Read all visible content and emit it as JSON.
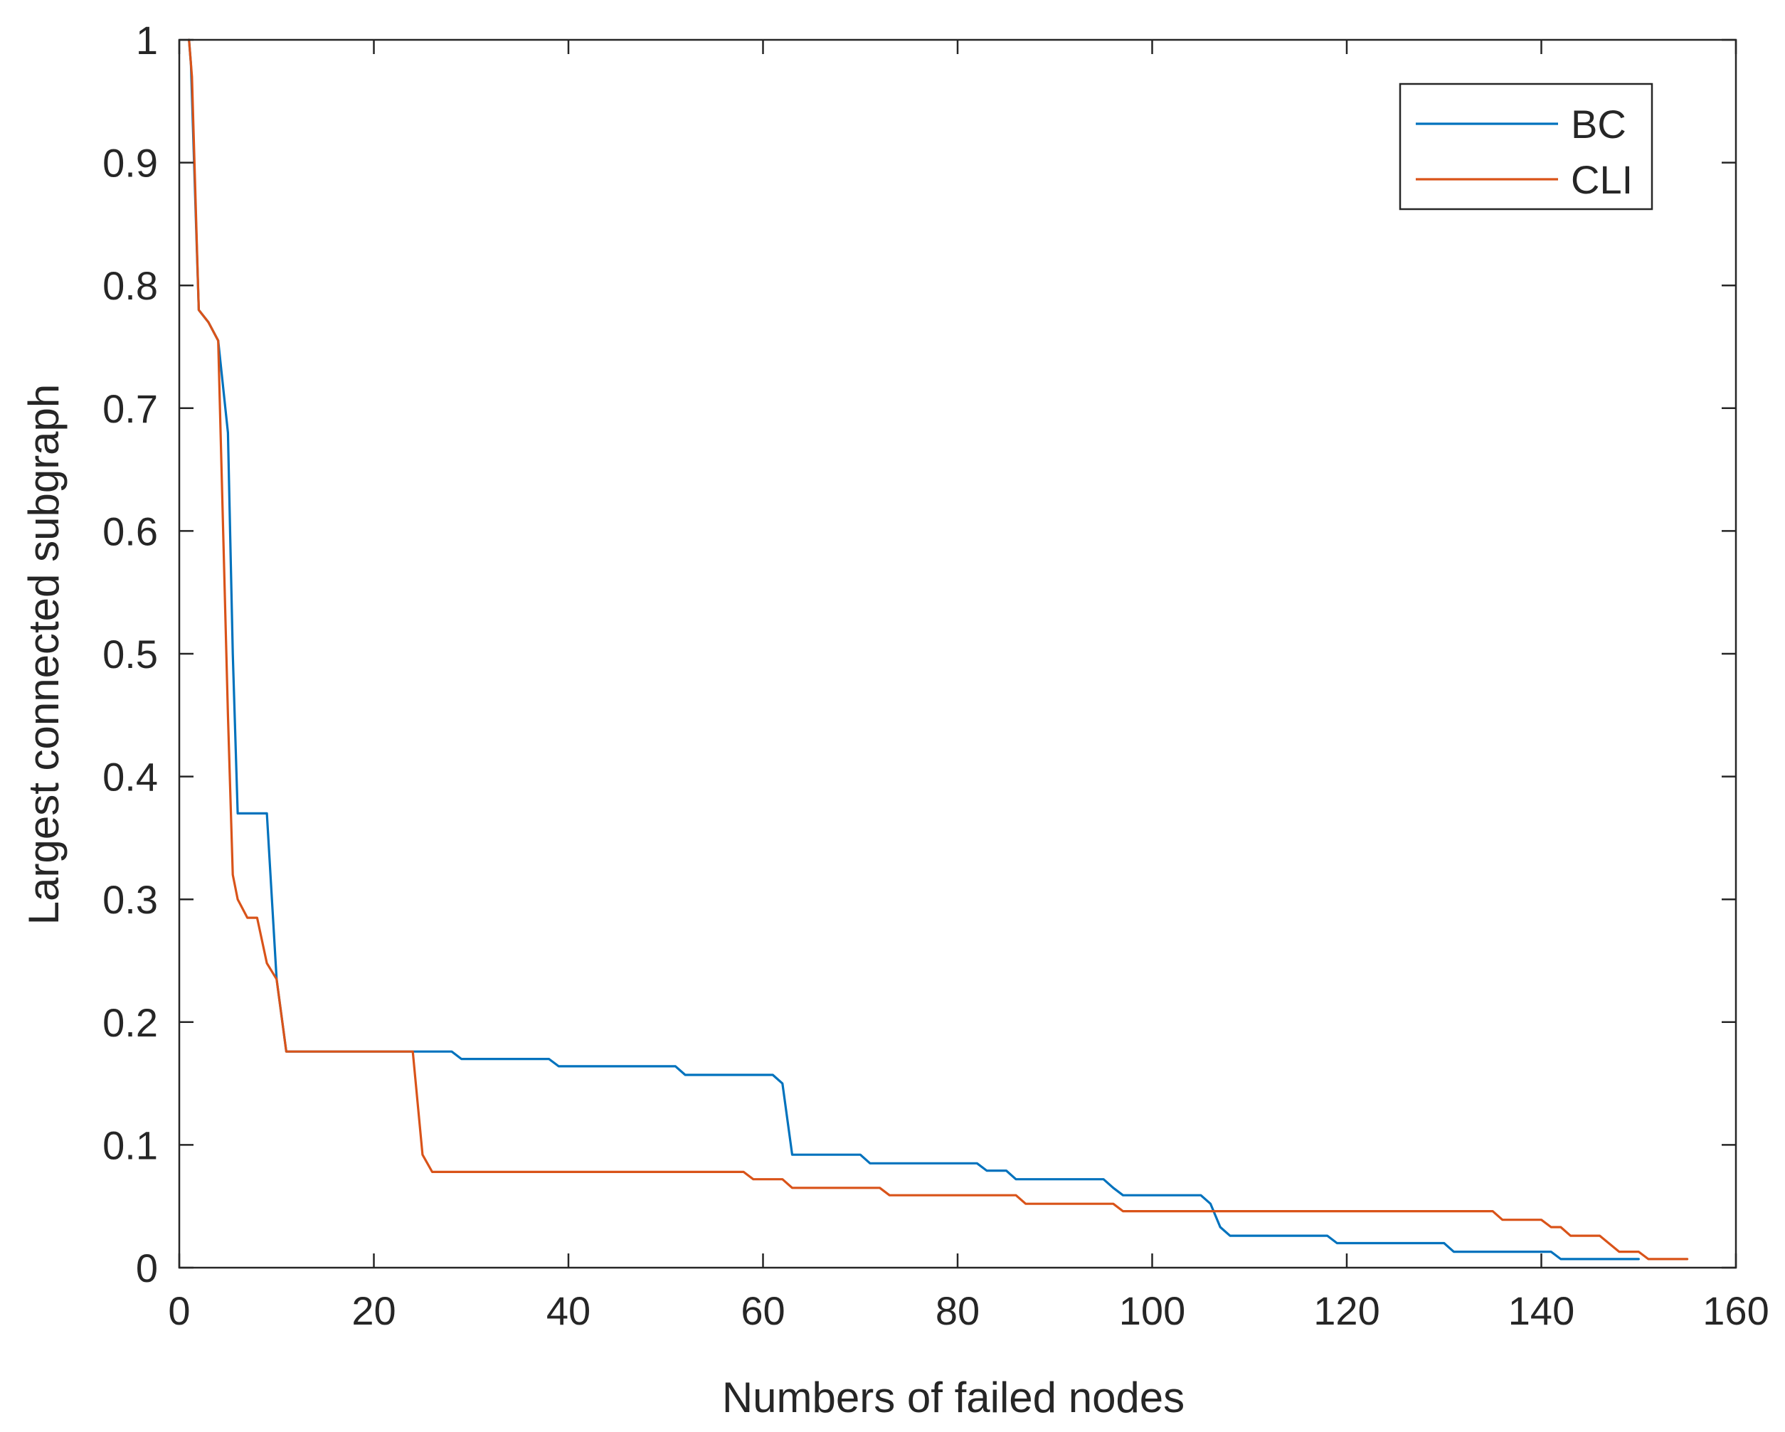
{
  "chart_data": {
    "type": "line",
    "title": "",
    "xlabel": "Numbers of failed nodes",
    "ylabel": "Largest connected subgraph",
    "xlim": [
      0,
      160
    ],
    "ylim": [
      0,
      1
    ],
    "xticks": [
      0,
      20,
      40,
      60,
      80,
      100,
      120,
      140,
      160
    ],
    "yticks": [
      0,
      0.1,
      0.2,
      0.3,
      0.4,
      0.5,
      0.6,
      0.7,
      0.8,
      0.9,
      1
    ],
    "xtick_labels": [
      "0",
      "20",
      "40",
      "60",
      "80",
      "100",
      "120",
      "140",
      "160"
    ],
    "ytick_labels": [
      "0",
      "0.1",
      "0.2",
      "0.3",
      "0.4",
      "0.5",
      "0.6",
      "0.7",
      "0.8",
      "0.9",
      "1"
    ],
    "grid": false,
    "legend_position": "top-right",
    "series": [
      {
        "name": "BC",
        "color": "#0072BD",
        "x": [
          1,
          1.2,
          2,
          3,
          4,
          5,
          5.5,
          6,
          7,
          8,
          9,
          10,
          11,
          12,
          24,
          28,
          29,
          38,
          39,
          51,
          52,
          61,
          62,
          63,
          70,
          71,
          82,
          83,
          85,
          86,
          95,
          96,
          97,
          105,
          106,
          107,
          108,
          118,
          119,
          130,
          131,
          141,
          142,
          150
        ],
        "y": [
          1,
          0.98,
          0.78,
          0.77,
          0.755,
          0.68,
          0.5,
          0.37,
          0.37,
          0.37,
          0.37,
          0.235,
          0.176,
          0.176,
          0.176,
          0.176,
          0.17,
          0.17,
          0.164,
          0.164,
          0.157,
          0.157,
          0.15,
          0.092,
          0.092,
          0.085,
          0.085,
          0.079,
          0.079,
          0.072,
          0.072,
          0.065,
          0.059,
          0.059,
          0.052,
          0.033,
          0.026,
          0.026,
          0.02,
          0.02,
          0.013,
          0.013,
          0.007,
          0.007
        ]
      },
      {
        "name": "CLI",
        "color": "#D95319",
        "x": [
          1,
          1.3,
          2,
          3,
          4,
          5,
          5.5,
          6,
          7,
          8,
          9,
          10,
          11,
          12,
          24,
          25,
          26,
          58,
          59,
          62,
          63,
          72,
          73,
          86,
          87,
          96,
          97,
          135,
          136,
          140,
          141,
          142,
          143,
          146,
          148,
          150,
          151,
          155
        ],
        "y": [
          1,
          0.97,
          0.78,
          0.77,
          0.755,
          0.45,
          0.32,
          0.3,
          0.285,
          0.285,
          0.248,
          0.235,
          0.176,
          0.176,
          0.176,
          0.092,
          0.078,
          0.078,
          0.072,
          0.072,
          0.065,
          0.065,
          0.059,
          0.059,
          0.052,
          0.052,
          0.046,
          0.046,
          0.039,
          0.039,
          0.033,
          0.033,
          0.026,
          0.026,
          0.013,
          0.013,
          0.007,
          0.007
        ]
      }
    ]
  }
}
